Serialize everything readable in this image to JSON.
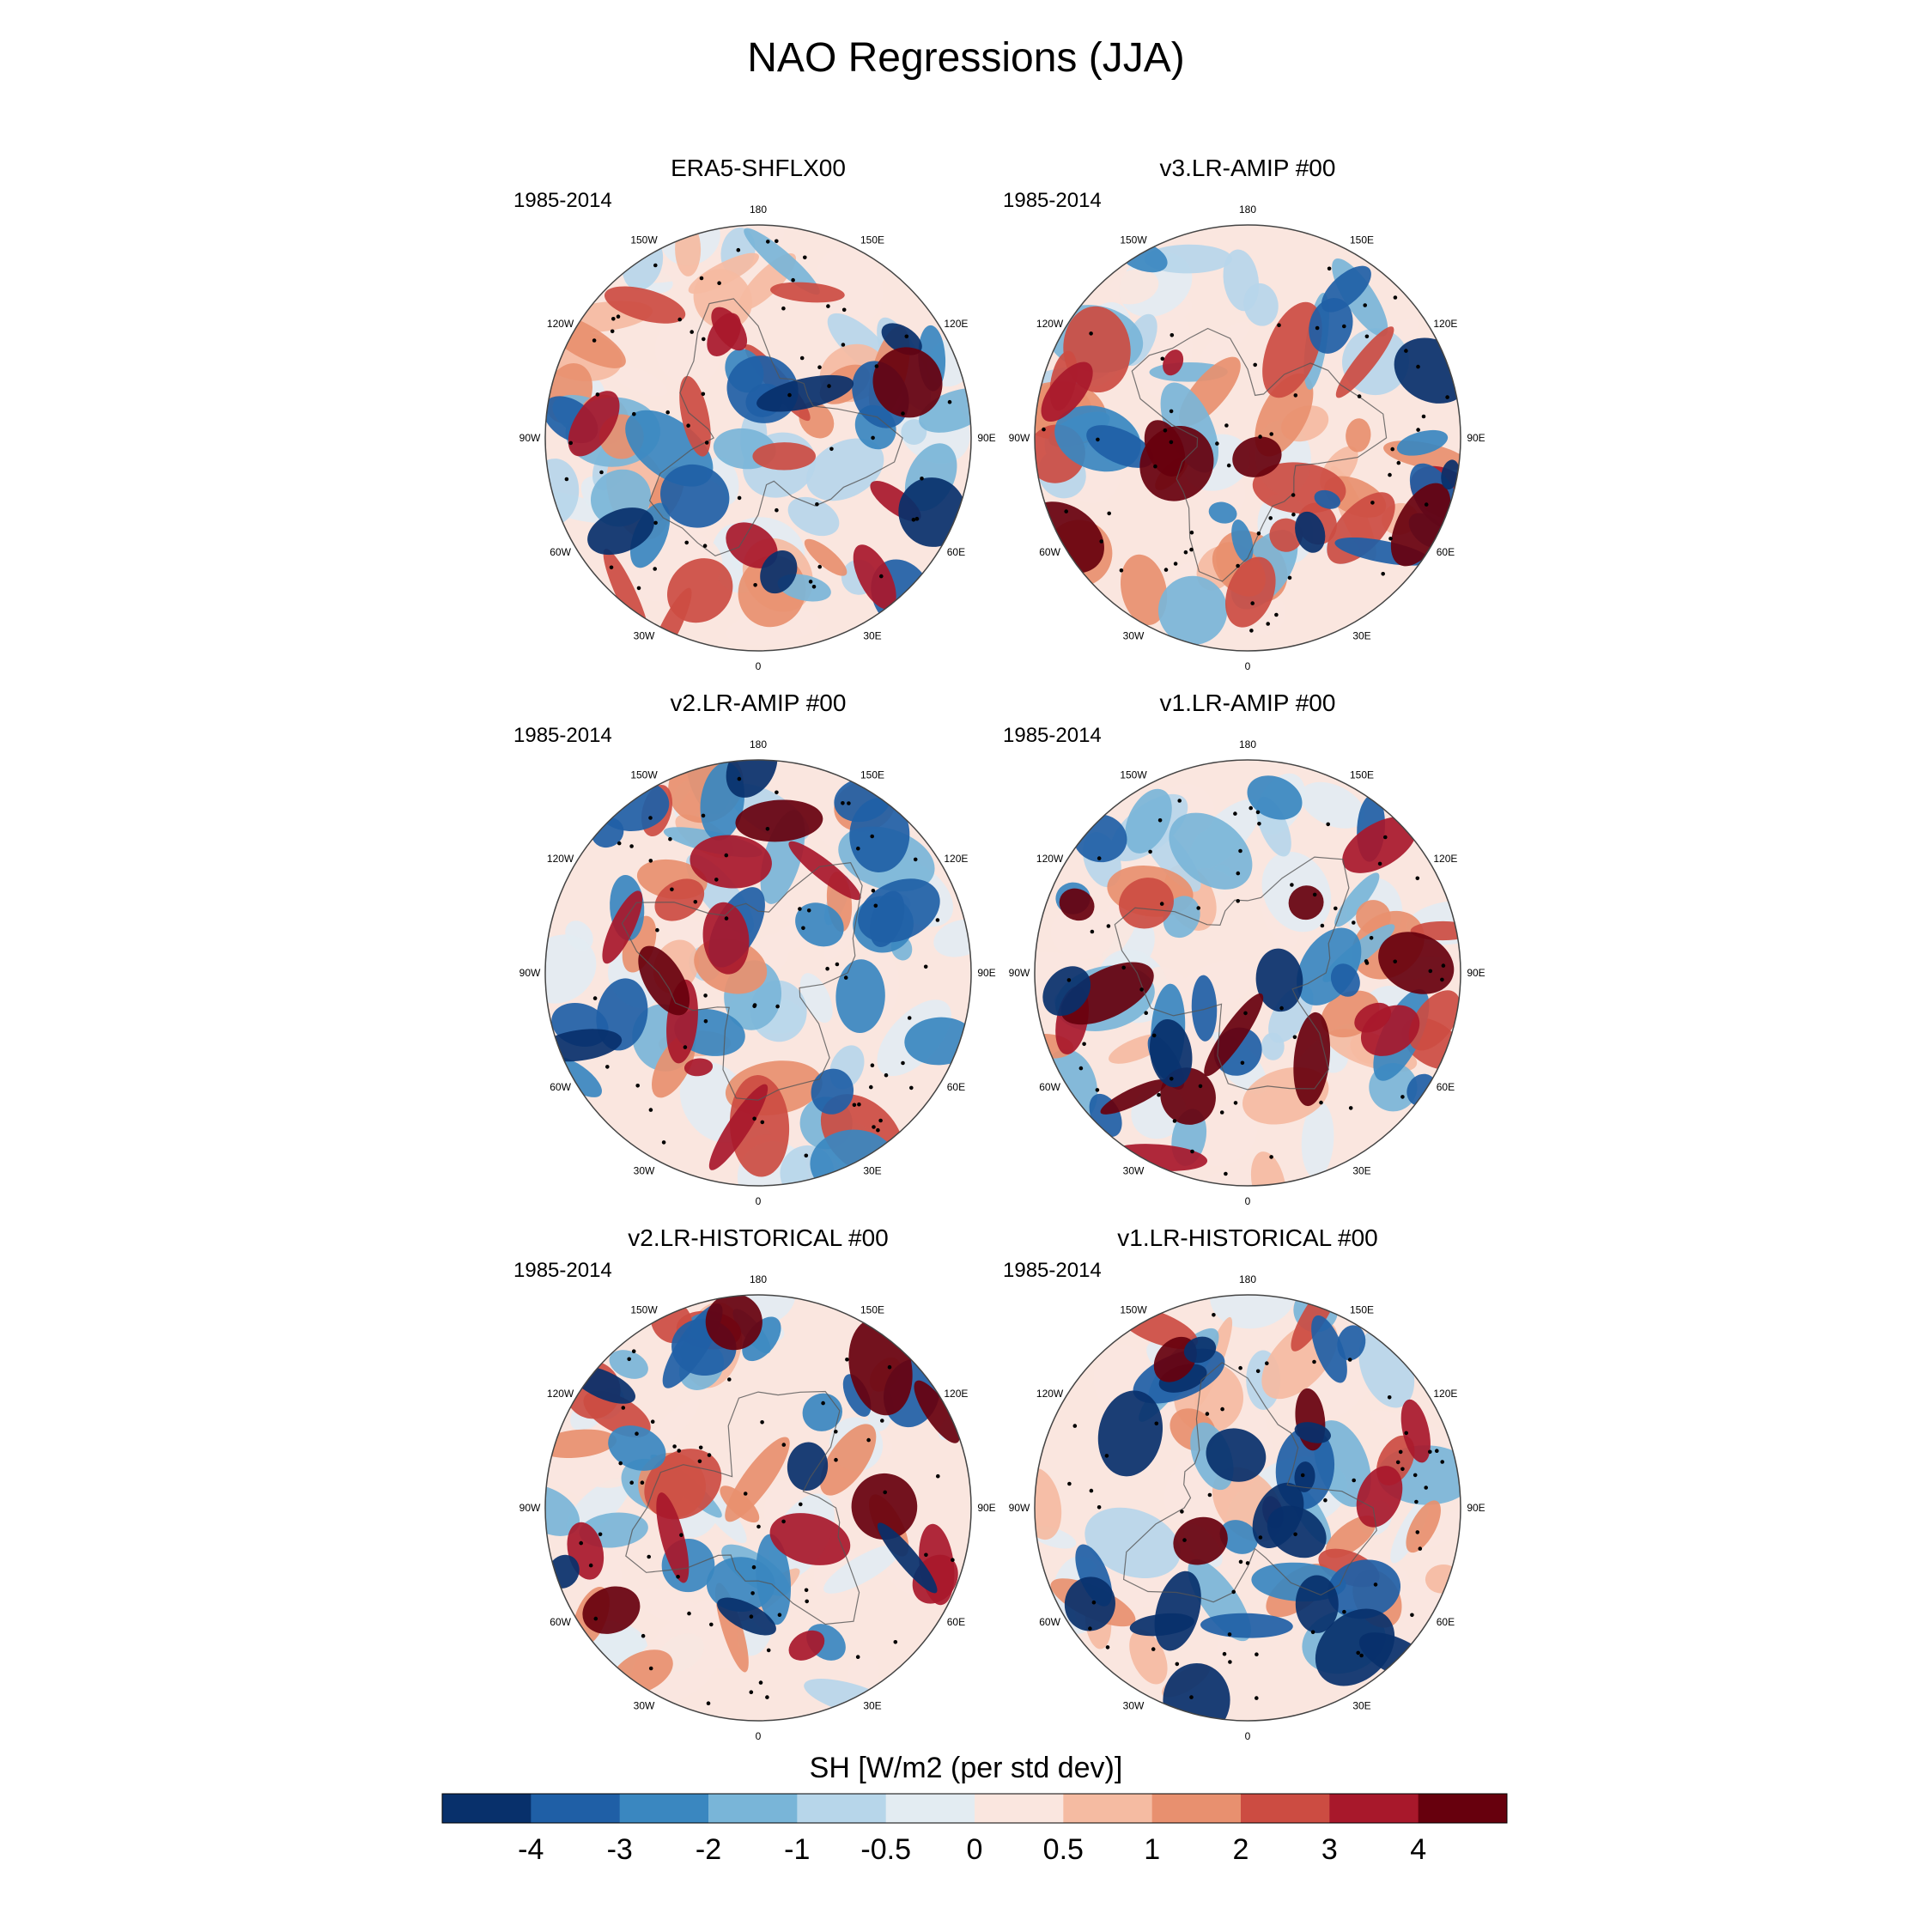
{
  "title": "NAO Regressions (JJA)",
  "colors": {
    "palette": [
      "#08306b",
      "#1f5fa6",
      "#3a87c0",
      "#79b5d8",
      "#b7d6ea",
      "#e3ecf2",
      "#fae6df",
      "#f5bba2",
      "#e8906f",
      "#cc4c42",
      "#a8182b",
      "#67000d"
    ],
    "coast": "#555555",
    "rim": "#444444"
  },
  "panels": [
    {
      "title": "ERA5-SHFLX00",
      "period": "1985-2014",
      "seed": 11
    },
    {
      "title": "v3.LR-AMIP  #00",
      "period": "1985-2014",
      "seed": 23
    },
    {
      "title": "v2.LR-AMIP  #00",
      "period": "1985-2014",
      "seed": 37
    },
    {
      "title": "v1.LR-AMIP  #00",
      "period": "1985-2014",
      "seed": 41
    },
    {
      "title": "v2.LR-HISTORICAL  #00",
      "period": "1985-2014",
      "seed": 53
    },
    {
      "title": "v1.LR-HISTORICAL  #00",
      "period": "1985-2014",
      "seed": 67
    }
  ],
  "longitude_labels": [
    "180",
    "150E",
    "120E",
    "90E",
    "60E",
    "30E",
    "0",
    "30W",
    "60W",
    "90W",
    "120W",
    "150W"
  ],
  "chart_data": {
    "type": "polar-map-panels",
    "title": "NAO Regressions (JJA)",
    "variable": "SH [W/m2 (per std dev)]",
    "colorbar_label": "SH [W/m2 (per std dev)]",
    "contour_levels": [
      -4,
      -3,
      -2,
      -1,
      -0.5,
      0,
      0.5,
      1,
      2,
      3,
      4
    ],
    "tick_labels": [
      "-4",
      "-3",
      "-2",
      "-1",
      "-0.5",
      "0",
      "0.5",
      "1",
      "2",
      "3",
      "4"
    ],
    "projection": "north polar stereographic",
    "panels": [
      "ERA5-SHFLX00",
      "v3.LR-AMIP  #00",
      "v2.LR-AMIP  #00",
      "v1.LR-AMIP  #00",
      "v2.LR-HISTORICAL  #00",
      "v1.LR-HISTORICAL  #00"
    ],
    "period": "1985-2014",
    "stippling": "significant regions"
  }
}
